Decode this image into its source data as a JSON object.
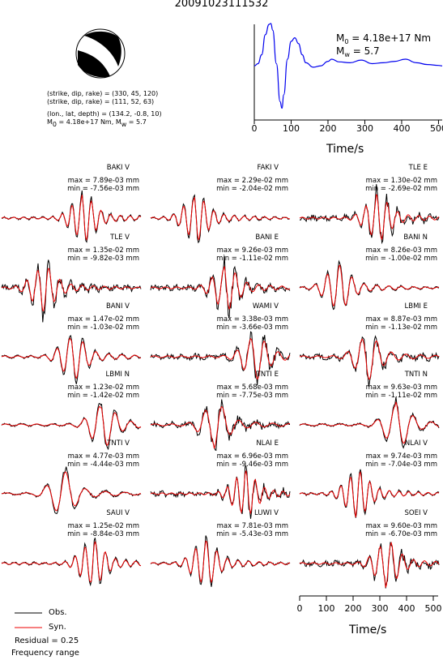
{
  "header": {
    "event_id": "20091023111532"
  },
  "mechanism": {
    "line1": "(strike, dip, rake) = (330, 45, 120)",
    "line2": "(strike, dip, rake) = (111, 52, 63)",
    "line3": "(lon., lat, depth) = (134.2, -0.8, 10)",
    "m0_text": "M",
    "m0_sub": "0",
    "m0_rest": " = 4.18e+17 Nm, M",
    "mw_sub": "w",
    "mw_rest": " = 5.7",
    "colors": {
      "beachball_fill": "#000000",
      "beachball_bg": "#ffffff"
    }
  },
  "stf": {
    "m0_label": "M",
    "m0_sub": "0",
    "m0_value": " = 4.18e+17 Nm",
    "mw_label": "M",
    "mw_sub": "w",
    "mw_value": " = 5.7",
    "xlabel": "Time/s",
    "xticks": [
      "0",
      "100",
      "200",
      "300",
      "400",
      "500"
    ],
    "color": "#0000ee"
  },
  "bottom_axis": {
    "xlabel": "Time/s",
    "xticks": [
      "0",
      "100",
      "200",
      "300",
      "400",
      "500"
    ]
  },
  "legend": {
    "obs_label": "Obs.",
    "syn_label": "Syn.",
    "residual": "Residual = 0.25",
    "frequency": "Frequency range",
    "obs_color": "#000000",
    "syn_color": "#ee0000"
  },
  "chart_data": [
    {
      "type": "line",
      "name": "source_time_function",
      "xlabel": "Time/s",
      "xlim": [
        0,
        510
      ],
      "x": [
        0,
        10,
        20,
        30,
        40,
        45,
        50,
        60,
        70,
        75,
        80,
        90,
        100,
        110,
        120,
        130,
        140,
        160,
        180,
        200,
        210,
        230,
        260,
        290,
        320,
        350,
        380,
        410,
        440,
        470,
        500,
        510
      ],
      "y": [
        0.05,
        0.1,
        0.3,
        0.75,
        0.98,
        1.0,
        0.85,
        0.1,
        -0.75,
        -0.9,
        -0.6,
        0.2,
        0.6,
        0.68,
        0.55,
        0.3,
        0.12,
        0.02,
        0.05,
        0.15,
        0.2,
        0.14,
        0.12,
        0.18,
        0.1,
        0.12,
        0.15,
        0.2,
        0.12,
        0.08,
        0.06,
        0.05
      ]
    },
    {
      "type": "line",
      "name": "waveform_fits",
      "series": [
        "Obs.",
        "Syn."
      ],
      "panels": [
        {
          "station": "BAKI V",
          "max": "max = 7.89e-03 mm",
          "min": "min = -7.56e-03 mm"
        },
        {
          "station": "FAKI V",
          "max": "max = 2.29e-02 mm",
          "min": "min = -2.04e-02 mm"
        },
        {
          "station": "TLE E",
          "max": "max = 1.30e-02 mm",
          "min": "min = -2.69e-02 mm"
        },
        {
          "station": "TLE V",
          "max": "max = 1.35e-02 mm",
          "min": "min = -9.82e-03 mm"
        },
        {
          "station": "BANI E",
          "max": "max = 9.26e-03 mm",
          "min": "min = -1.11e-02 mm"
        },
        {
          "station": "BANI N",
          "max": "max = 8.26e-03 mm",
          "min": "min = -1.00e-02 mm"
        },
        {
          "station": "BANI V",
          "max": "max = 1.47e-02 mm",
          "min": "min = -1.03e-02 mm"
        },
        {
          "station": "WAMI V",
          "max": "max = 3.38e-03 mm",
          "min": "min = -3.66e-03 mm"
        },
        {
          "station": "LBMI E",
          "max": "max = 8.87e-03 mm",
          "min": "min = -1.13e-02 mm"
        },
        {
          "station": "LBMI N",
          "max": "max = 1.23e-02 mm",
          "min": "min = -1.42e-02 mm"
        },
        {
          "station": "TNTI E",
          "max": "max = 5.68e-03 mm",
          "min": "min = -7.75e-03 mm"
        },
        {
          "station": "TNTI N",
          "max": "max = 9.63e-03 mm",
          "min": "min = -1.11e-02 mm"
        },
        {
          "station": "TNTI V",
          "max": "max = 4.77e-03 mm",
          "min": "min = -4.44e-03 mm"
        },
        {
          "station": "NLAI E",
          "max": "max = 6.96e-03 mm",
          "min": "min = -9.46e-03 mm"
        },
        {
          "station": "NLAI V",
          "max": "max = 9.74e-03 mm",
          "min": "min = -7.04e-03 mm"
        },
        {
          "station": "SAUI V",
          "max": "max = 1.25e-02 mm",
          "min": "min = -8.84e-03 mm"
        },
        {
          "station": "LUWI V",
          "max": "max = 7.81e-03 mm",
          "min": "min = -5.43e-03 mm"
        },
        {
          "station": "SOEI V",
          "max": "max = 9.60e-03 mm",
          "min": "min = -6.70e-03 mm"
        }
      ]
    }
  ]
}
